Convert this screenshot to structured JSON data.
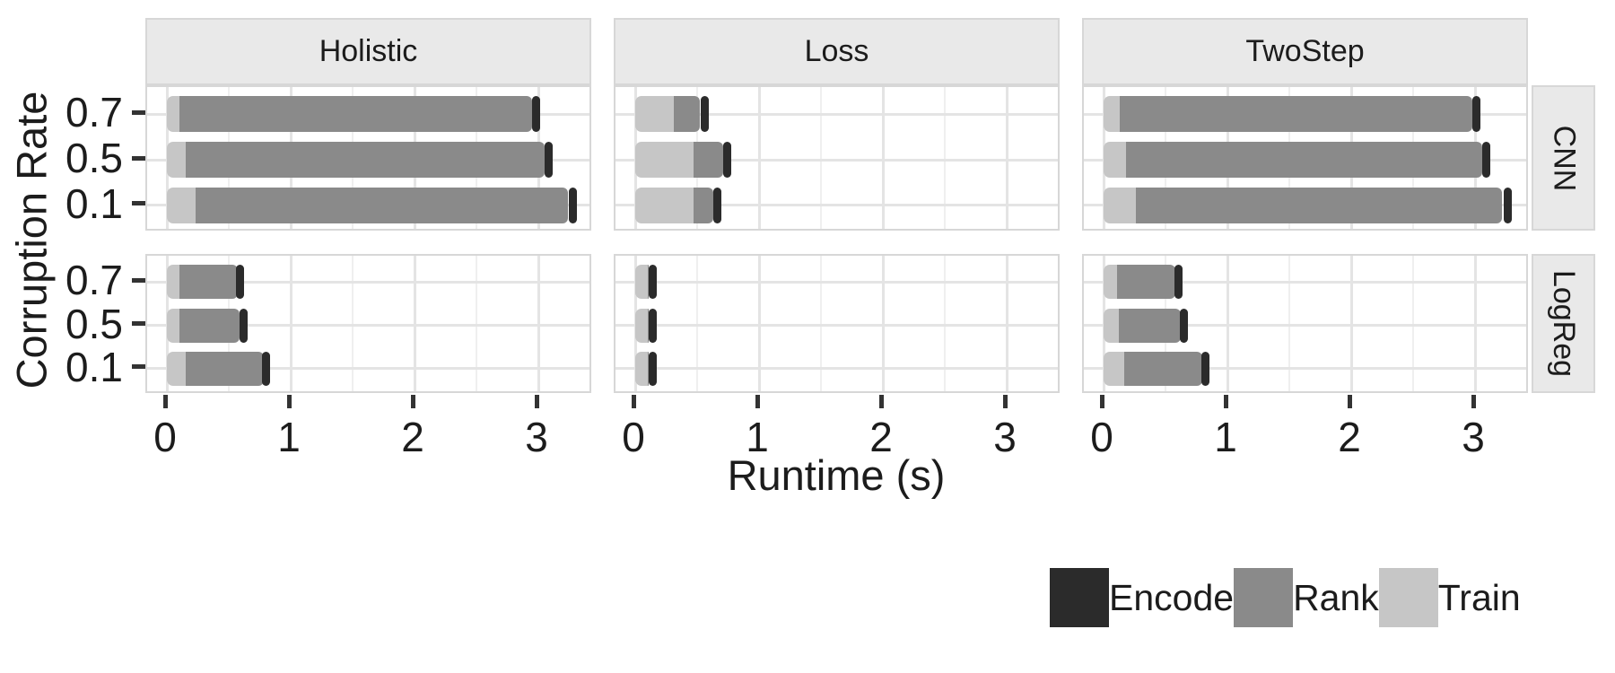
{
  "chart_data": {
    "type": "bar",
    "orientation": "horizontal",
    "stacked": true,
    "title": "",
    "xlabel": "Runtime (s)",
    "ylabel": "Corruption Rate",
    "x_ticks": [
      "0",
      "1",
      "2",
      "3"
    ],
    "x_major_gridlines": [
      0,
      1,
      2,
      3
    ],
    "x_minor_gridlines": [
      0.5,
      1.5,
      2.5
    ],
    "xlim": [
      -0.17,
      3.45
    ],
    "grid": true,
    "legend_position": "bottom-right",
    "col_facets": [
      "Holistic",
      "Loss",
      "TwoStep"
    ],
    "row_facets": [
      "CNN",
      "LogReg"
    ],
    "categories": [
      "0.7",
      "0.5",
      "0.1"
    ],
    "stack_order": [
      "train",
      "rank",
      "encode"
    ],
    "colors": {
      "encode": "#2b2b2b",
      "rank": "#8a8a8a",
      "train": "#c6c6c6"
    },
    "legend": {
      "items": [
        {
          "label": "Encode",
          "key": "encode"
        },
        {
          "label": "Rank",
          "key": "rank"
        },
        {
          "label": "Train",
          "key": "train"
        }
      ]
    },
    "panels": [
      {
        "row": "CNN",
        "col": "Holistic",
        "bars": [
          {
            "cat": "0.7",
            "train": 0.1,
            "rank": 2.85,
            "encode": 0.05
          },
          {
            "cat": "0.5",
            "train": 0.15,
            "rank": 2.9,
            "encode": 0.05
          },
          {
            "cat": "0.1",
            "train": 0.23,
            "rank": 3.01,
            "encode": 0.06
          }
        ]
      },
      {
        "row": "CNN",
        "col": "Loss",
        "bars": [
          {
            "cat": "0.7",
            "train": 0.31,
            "rank": 0.21,
            "encode": 0.06
          },
          {
            "cat": "0.5",
            "train": 0.47,
            "rank": 0.24,
            "encode": 0.05
          },
          {
            "cat": "0.1",
            "train": 0.47,
            "rank": 0.16,
            "encode": 0.05
          }
        ]
      },
      {
        "row": "CNN",
        "col": "TwoStep",
        "bars": [
          {
            "cat": "0.7",
            "train": 0.13,
            "rank": 2.85,
            "encode": 0.05
          },
          {
            "cat": "0.5",
            "train": 0.18,
            "rank": 2.88,
            "encode": 0.05
          },
          {
            "cat": "0.1",
            "train": 0.26,
            "rank": 2.96,
            "encode": 0.06
          }
        ]
      },
      {
        "row": "LogReg",
        "col": "Holistic",
        "bars": [
          {
            "cat": "0.7",
            "train": 0.1,
            "rank": 0.47,
            "encode": 0.04
          },
          {
            "cat": "0.5",
            "train": 0.1,
            "rank": 0.49,
            "encode": 0.05
          },
          {
            "cat": "0.1",
            "train": 0.15,
            "rank": 0.63,
            "encode": 0.04
          }
        ]
      },
      {
        "row": "LogReg",
        "col": "Loss",
        "bars": [
          {
            "cat": "0.7",
            "train": 0.1,
            "rank": 0.01,
            "encode": 0.05
          },
          {
            "cat": "0.5",
            "train": 0.1,
            "rank": 0.01,
            "encode": 0.05
          },
          {
            "cat": "0.1",
            "train": 0.1,
            "rank": 0.01,
            "encode": 0.05
          }
        ]
      },
      {
        "row": "LogReg",
        "col": "TwoStep",
        "bars": [
          {
            "cat": "0.7",
            "train": 0.11,
            "rank": 0.47,
            "encode": 0.04
          },
          {
            "cat": "0.5",
            "train": 0.12,
            "rank": 0.5,
            "encode": 0.05
          },
          {
            "cat": "0.1",
            "train": 0.17,
            "rank": 0.63,
            "encode": 0.04
          }
        ]
      }
    ]
  }
}
